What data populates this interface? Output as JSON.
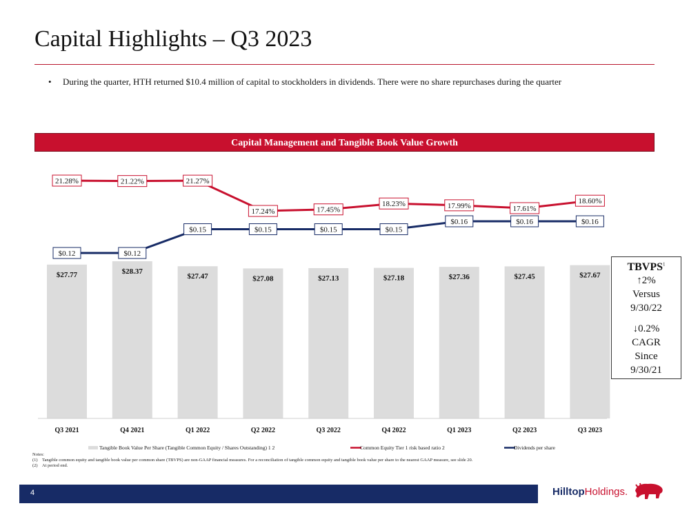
{
  "title": "Capital Highlights – Q3 2023",
  "bullet": "During the quarter, HTH returned $10.4 million of capital to stockholders in dividends. There were no share repurchases during the quarter",
  "banner": "Capital Management and Tangible Book Value Growth",
  "colors": {
    "accent": "#c8102e",
    "navy": "#172b66",
    "bar": "#dcdcdc"
  },
  "chart_data": {
    "type": "bar",
    "categories": [
      "Q3 2021",
      "Q4 2021",
      "Q1 2022",
      "Q2 2022",
      "Q3 2022",
      "Q4 2022",
      "Q1 2023",
      "Q2 2023",
      "Q3 2023"
    ],
    "series": [
      {
        "name": "Tangible Book Value Per Share (Tangible Common Equity / Shares Outstanding)",
        "type": "bar",
        "values": [
          27.77,
          28.37,
          27.47,
          27.08,
          27.13,
          27.18,
          27.36,
          27.45,
          27.67
        ],
        "labels": [
          "$27.77",
          "$28.37",
          "$27.47",
          "$27.08",
          "$27.13",
          "$27.18",
          "$27.36",
          "$27.45",
          "$27.67"
        ]
      },
      {
        "name": "Common Equity Tier 1 risk based ratio",
        "type": "line",
        "values": [
          21.28,
          21.22,
          21.27,
          17.24,
          17.45,
          18.23,
          17.99,
          17.61,
          18.6
        ],
        "labels": [
          "21.28%",
          "21.22%",
          "21.27%",
          "17.24%",
          "17.45%",
          "18.23%",
          "17.99%",
          "17.61%",
          "18.60%"
        ]
      },
      {
        "name": "Dividends per share",
        "type": "line",
        "values": [
          0.12,
          0.12,
          0.15,
          0.15,
          0.15,
          0.15,
          0.16,
          0.16,
          0.16
        ],
        "labels": [
          "$0.12",
          "$0.12",
          "$0.15",
          "$0.15",
          "$0.15",
          "$0.15",
          "$0.16",
          "$0.16",
          "$0.16"
        ]
      }
    ],
    "legend": [
      {
        "label": "Tangible Book Value Per Share (Tangible Common Equity / Shares Outstanding)",
        "sup": "1 2"
      },
      {
        "label": "Common Equity Tier 1 risk based ratio",
        "sup": "2"
      },
      {
        "label": "Dividends per share",
        "sup": ""
      }
    ],
    "legend_position": "bottom"
  },
  "side_box": {
    "head": "TBVPS",
    "head_sup": "1",
    "lines_a": [
      "↑2%",
      "Versus",
      "9/30/22"
    ],
    "lines_b": [
      "↓0.2%",
      "CAGR",
      "Since",
      "9/30/21"
    ]
  },
  "notes": {
    "heading": "Notes:",
    "items": [
      {
        "num": "(1)",
        "text": "Tangible common equity and tangible book value per common share (TBVPS) are non-GAAP financial measures. For a reconciliation of tangible common equity and tangible book value per share to the nearest GAAP measure, see slide 20."
      },
      {
        "num": "(2)",
        "text": "At period end."
      }
    ]
  },
  "footer": {
    "page": "4",
    "logo_bold": "Hilltop",
    "logo_rest": "Holdings."
  }
}
